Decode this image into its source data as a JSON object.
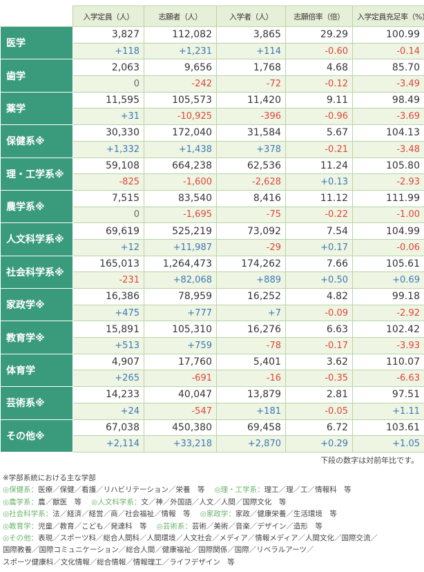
{
  "table": {
    "columns": [
      "入学定員（人）",
      "志願者（人）",
      "入学者（人）",
      "志願倍率（倍）",
      "入学定員充足率（%）"
    ],
    "rows": [
      {
        "name": "医学",
        "top": [
          "3,827",
          "112,082",
          "3,865",
          "29.29",
          "100.99"
        ],
        "bottom": [
          "+118",
          "+1,231",
          "+114",
          "-0.60",
          "-0.14"
        ]
      },
      {
        "name": "歯学",
        "top": [
          "2,063",
          "9,656",
          "1,768",
          "4.68",
          "85.70"
        ],
        "bottom": [
          "0",
          "-242",
          "-72",
          "-0.12",
          "-3.49"
        ]
      },
      {
        "name": "薬学",
        "top": [
          "11,595",
          "105,573",
          "11,420",
          "9.11",
          "98.49"
        ],
        "bottom": [
          "+31",
          "-10,925",
          "-396",
          "-0.96",
          "-3.69"
        ]
      },
      {
        "name": "保健系※",
        "top": [
          "30,330",
          "172,040",
          "31,584",
          "5.67",
          "104.13"
        ],
        "bottom": [
          "+1,332",
          "+1,438",
          "+378",
          "-0.21",
          "-3.48"
        ]
      },
      {
        "name": "理・工学系※",
        "top": [
          "59,108",
          "664,238",
          "62,536",
          "11.24",
          "105.80"
        ],
        "bottom": [
          "-825",
          "-1,600",
          "-2,628",
          "+0.13",
          "-2.93"
        ]
      },
      {
        "name": "農学系※",
        "top": [
          "7,515",
          "83,540",
          "8,416",
          "11.12",
          "111.99"
        ],
        "bottom": [
          "0",
          "-1,695",
          "-75",
          "-0.22",
          "-1.00"
        ]
      },
      {
        "name": "人文科学系※",
        "top": [
          "69,619",
          "525,219",
          "73,092",
          "7.54",
          "104.99"
        ],
        "bottom": [
          "+12",
          "+11,987",
          "-29",
          "+0.17",
          "-0.06"
        ]
      },
      {
        "name": "社会科学系※",
        "top": [
          "165,013",
          "1,264,473",
          "174,262",
          "7.66",
          "105.61"
        ],
        "bottom": [
          "-231",
          "+82,068",
          "+889",
          "+0.50",
          "+0.69"
        ]
      },
      {
        "name": "家政学※",
        "top": [
          "16,386",
          "78,959",
          "16,252",
          "4.82",
          "99.18"
        ],
        "bottom": [
          "+475",
          "+777",
          "+7",
          "-0.09",
          "-2.92"
        ]
      },
      {
        "name": "教育学※",
        "top": [
          "15,891",
          "105,310",
          "16,276",
          "6.63",
          "102.42"
        ],
        "bottom": [
          "+513",
          "+759",
          "-78",
          "-0.17",
          "-3.93"
        ]
      },
      {
        "name": "体育学",
        "top": [
          "4,907",
          "17,760",
          "5,401",
          "3.62",
          "110.07"
        ],
        "bottom": [
          "+265",
          "-691",
          "-16",
          "-0.35",
          "-6.63"
        ]
      },
      {
        "name": "芸術系※",
        "top": [
          "14,233",
          "40,047",
          "13,879",
          "2.81",
          "97.51"
        ],
        "bottom": [
          "+24",
          "-547",
          "+181",
          "-0.05",
          "+1.11"
        ]
      },
      {
        "name": "その他※",
        "top": [
          "67,038",
          "450,380",
          "69,458",
          "6.72",
          "103.61"
        ],
        "bottom": [
          "+2,114",
          "+33,218",
          "+2,870",
          "+0.29",
          "+1.05"
        ]
      }
    ],
    "footnote": "下段の数字は対前年比です。"
  },
  "notes": {
    "title": "※学部系統における主な学部",
    "lines": [
      [
        {
          "label": "◎保健系：",
          "text": "医療／保健／看護／リハビリテーション／栄養　等"
        },
        {
          "label": "◎理・工学系：",
          "text": "理工／理／工／情報科　等"
        }
      ],
      [
        {
          "label": "◎農学系：",
          "text": "農／獣医　等"
        },
        {
          "label": "◎人文科学系：",
          "text": "文／神／外国語／人文／人間／国際文化　等"
        }
      ],
      [
        {
          "label": "◎社会科学系：",
          "text": "法／経済／経営／商／社会福祉／情報　等"
        },
        {
          "label": "◎家政学：",
          "text": "家政／健康栄養／生活環境　等"
        }
      ],
      [
        {
          "label": "◎教育学：",
          "text": "児童／教育／こども／発達科　等"
        },
        {
          "label": "◎芸術系：",
          "text": "芸術／美術／音楽／デザイン／造形　等"
        }
      ],
      [
        {
          "label": "◎その他：",
          "text": "表現／スポーツ科／総合人間科／人間環境／人文社会／メディア／情報メディア／人間文化／国際交流／"
        }
      ],
      [
        {
          "text": "国際教養／国際コミュニケーション／総合人間／健康福祉／国際関係／国際／リベラルアーツ／"
        }
      ],
      [
        {
          "text": "スポーツ健康科／文化情報／総合情報／情報理工／ライフデザイン　等"
        }
      ]
    ]
  }
}
